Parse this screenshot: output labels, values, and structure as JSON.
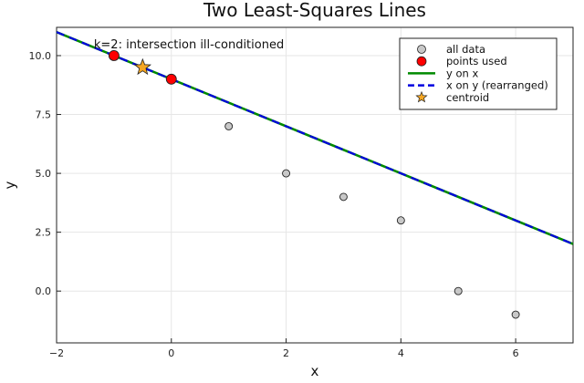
{
  "chart_data": {
    "type": "scatter",
    "title": "Two Least-Squares Lines",
    "xlabel": "x",
    "ylabel": "y",
    "xlim": [
      -2,
      7
    ],
    "ylim": [
      -2.2,
      11.2
    ],
    "xticks": [
      -2,
      0,
      2,
      4,
      6
    ],
    "xtick_labels": [
      "−2",
      "0",
      "2",
      "4",
      "6"
    ],
    "yticks": [
      0,
      2.5,
      5,
      7.5,
      10
    ],
    "ytick_labels": [
      "0.0",
      "2.5",
      "5.0",
      "7.5",
      "10.0"
    ],
    "grid": true,
    "legend_position": "top-right",
    "annotation": {
      "text": "k=2: intersection ill-conditioned",
      "x": -1.35,
      "y": 10.3
    },
    "series": [
      {
        "name": "all data",
        "kind": "scatter",
        "color": "#c8c8c8",
        "x": [
          1,
          2,
          3,
          4,
          5,
          6
        ],
        "y": [
          7,
          5,
          4,
          3,
          0,
          -1
        ]
      },
      {
        "name": "points used",
        "kind": "scatter",
        "color": "#ff0000",
        "x": [
          -1,
          0
        ],
        "y": [
          10,
          9
        ]
      },
      {
        "name": "y on x",
        "kind": "line",
        "color": "#008a00",
        "dashed": false,
        "x": [
          -2,
          7
        ],
        "y": [
          11,
          2
        ]
      },
      {
        "name": "x on y (rearranged)",
        "kind": "line",
        "color": "#0000e0",
        "dashed": true,
        "x": [
          -2,
          7
        ],
        "y": [
          11,
          2
        ]
      },
      {
        "name": "centroid",
        "kind": "star",
        "color": "#f5a623",
        "x": [
          -0.5
        ],
        "y": [
          9.5
        ]
      }
    ]
  }
}
